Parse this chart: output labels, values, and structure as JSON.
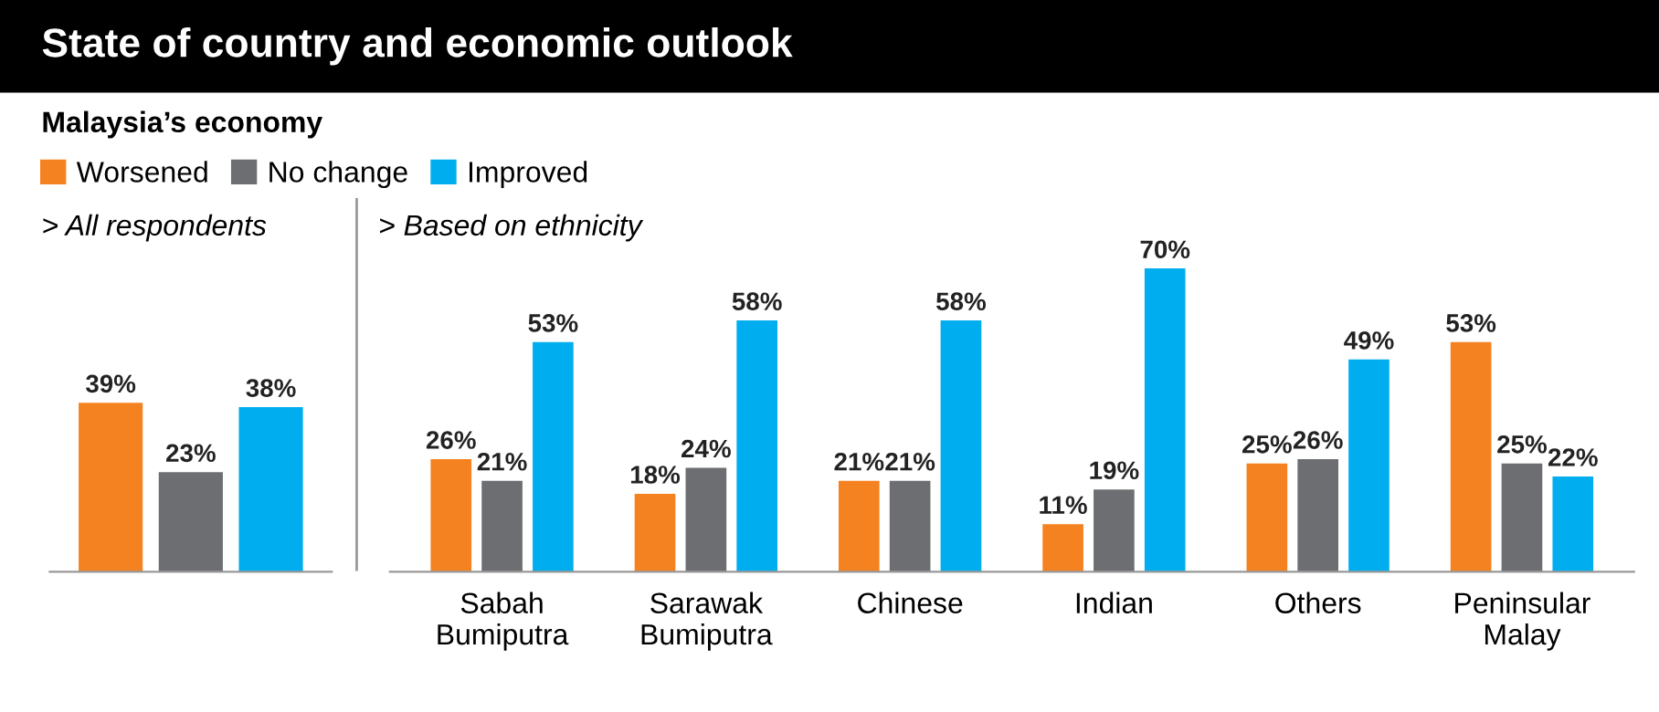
{
  "chart_data": [
    {
      "type": "bar",
      "title": "State of country and economic outlook",
      "subtitle": "Malaysia’s economy",
      "annotations": [
        "> All respondents"
      ],
      "legend": "top",
      "categories": [
        null
      ],
      "series": [
        {
          "name": "Worsened",
          "color": "#f58220",
          "values": [
            39
          ],
          "value_labels": [
            "39%"
          ]
        },
        {
          "name": "No change",
          "color": "#6d6e71",
          "values": [
            23
          ],
          "value_labels": [
            "23%"
          ]
        },
        {
          "name": "Improved",
          "color": "#00aeef",
          "values": [
            38
          ],
          "value_labels": [
            "38%"
          ]
        }
      ]
    },
    {
      "type": "bar",
      "title": "> Based on ethnicity",
      "categories": [
        "Sabah\nBumiputra",
        "Sarawak\nBumiputra",
        "Chinese",
        "Indian",
        "Others",
        "Peninsular\nMalay"
      ],
      "series": [
        {
          "color": "#f58220",
          "values": [
            26,
            18,
            21,
            11,
            25,
            53
          ],
          "value_labels": [
            "26%",
            "18%",
            "21%",
            "11%",
            "25%",
            "53%"
          ]
        },
        {
          "color": "#6d6e71",
          "values": [
            21,
            24,
            21,
            19,
            26,
            25
          ],
          "value_labels": [
            "21%",
            "24%",
            "21%",
            "19%",
            "26%",
            "25%"
          ]
        },
        {
          "color": "#00aeef",
          "values": [
            53,
            58,
            58,
            70,
            49,
            22
          ],
          "value_labels": [
            "53%",
            "58%",
            "58%",
            "70%",
            "49%",
            "22%"
          ]
        }
      ]
    }
  ]
}
